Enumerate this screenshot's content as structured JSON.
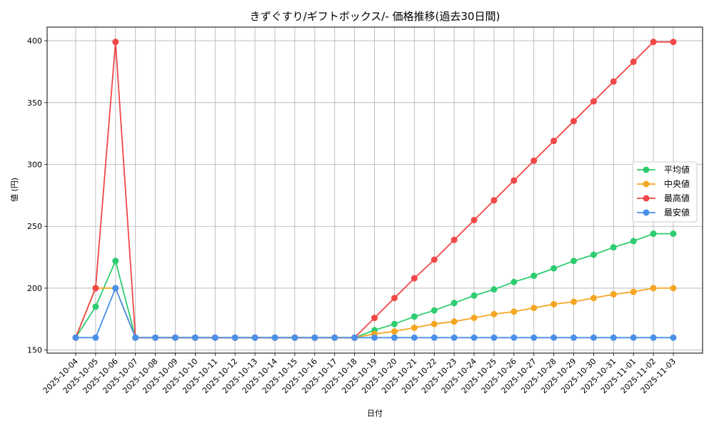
{
  "chart_data": {
    "type": "line",
    "title": "きずぐすり/ギフトボックス/- 価格推移(過去30日間)",
    "xlabel": "日付",
    "ylabel": "値 (円)",
    "ylim": [
      147.5,
      411
    ],
    "yticks": [
      150,
      200,
      250,
      300,
      350,
      400
    ],
    "grid": true,
    "legend_position": "right",
    "categories": [
      "2025-10-04",
      "2025-10-05",
      "2025-10-06",
      "2025-10-07",
      "2025-10-08",
      "2025-10-09",
      "2025-10-10",
      "2025-10-11",
      "2025-10-12",
      "2025-10-13",
      "2025-10-14",
      "2025-10-15",
      "2025-10-16",
      "2025-10-17",
      "2025-10-18",
      "2025-10-19",
      "2025-10-20",
      "2025-10-21",
      "2025-10-22",
      "2025-10-23",
      "2025-10-24",
      "2025-10-25",
      "2025-10-26",
      "2025-10-27",
      "2025-10-28",
      "2025-10-29",
      "2025-10-30",
      "2025-10-31",
      "2025-11-01",
      "2025-11-02",
      "2025-11-03"
    ],
    "series": [
      {
        "name": "平均値",
        "color": "#2ecc71",
        "values": [
          160,
          185,
          222,
          160,
          160,
          160,
          160,
          160,
          160,
          160,
          160,
          160,
          160,
          160,
          160,
          166,
          171,
          177,
          182,
          188,
          194,
          199,
          205,
          210,
          216,
          222,
          227,
          233,
          238,
          244,
          244
        ]
      },
      {
        "name": "中央値",
        "color": "#f5a623",
        "values": [
          160,
          200,
          200,
          160,
          160,
          160,
          160,
          160,
          160,
          160,
          160,
          160,
          160,
          160,
          160,
          163,
          165,
          168,
          171,
          173,
          176,
          179,
          181,
          184,
          187,
          189,
          192,
          195,
          197,
          200,
          200
        ]
      },
      {
        "name": "最高値",
        "color": "#f04848",
        "values": [
          160,
          200,
          399,
          160,
          160,
          160,
          160,
          160,
          160,
          160,
          160,
          160,
          160,
          160,
          160,
          176,
          192,
          208,
          223,
          239,
          255,
          271,
          287,
          303,
          319,
          335,
          351,
          367,
          383,
          399,
          399
        ]
      },
      {
        "name": "最安値",
        "color": "#4a90e8",
        "values": [
          160,
          160,
          200,
          160,
          160,
          160,
          160,
          160,
          160,
          160,
          160,
          160,
          160,
          160,
          160,
          160,
          160,
          160,
          160,
          160,
          160,
          160,
          160,
          160,
          160,
          160,
          160,
          160,
          160,
          160,
          160
        ]
      }
    ]
  }
}
